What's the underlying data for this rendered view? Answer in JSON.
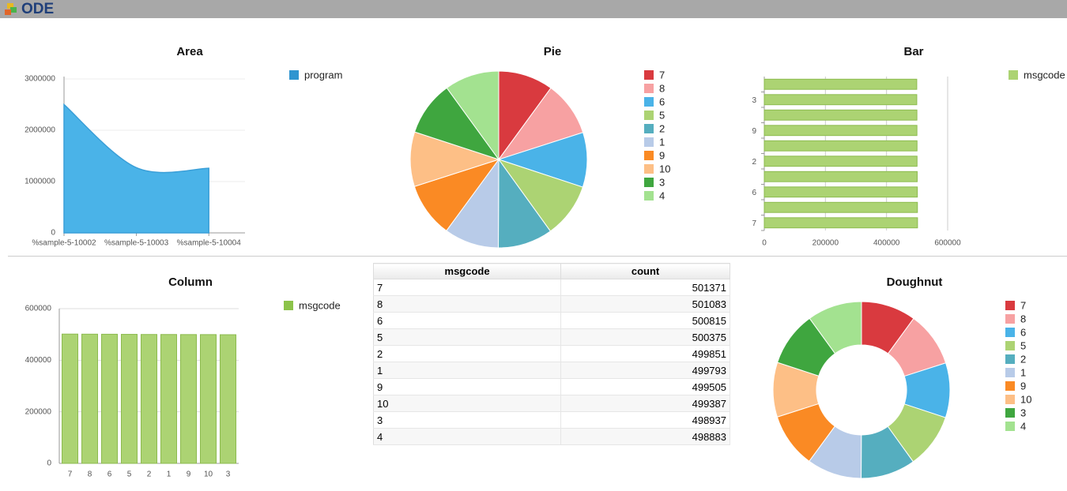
{
  "header": {
    "title": "ODE"
  },
  "chart_data": [
    {
      "type": "area",
      "title": "Area",
      "categories": [
        "%sample-5-10002",
        "%sample-5-10003",
        "%sample-5-10004"
      ],
      "series": [
        {
          "name": "program",
          "color": "#4ab3e8",
          "values": [
            2500000,
            1270000,
            1260000
          ]
        }
      ],
      "ylim": [
        0,
        3000000
      ],
      "yticks": [
        0,
        1000000,
        2000000,
        3000000
      ],
      "grid": true
    },
    {
      "type": "pie",
      "title": "Pie",
      "categories": [
        "7",
        "8",
        "6",
        "5",
        "2",
        "1",
        "9",
        "10",
        "3",
        "4"
      ],
      "values": [
        501371,
        501083,
        500815,
        500375,
        499851,
        499793,
        499505,
        499387,
        498937,
        498883
      ],
      "colors": [
        "#d93a3f",
        "#f7a1a2",
        "#4ab3e8",
        "#acd373",
        "#55aebf",
        "#b8cbe8",
        "#fa8a24",
        "#fdbf86",
        "#3fa63f",
        "#a3e290"
      ]
    },
    {
      "type": "barh",
      "title": "Bar",
      "categories": [
        "7",
        null,
        "6",
        null,
        "2",
        null,
        "9",
        null,
        "3",
        null
      ],
      "series": [
        {
          "name": "msgcode",
          "color": "#acd373",
          "values": [
            501371,
            501083,
            500815,
            500375,
            499851,
            499793,
            499505,
            499387,
            498937,
            498883
          ]
        }
      ],
      "xlim": [
        0,
        600000
      ],
      "xticks": [
        0,
        200000,
        400000,
        600000
      ],
      "grid": true
    },
    {
      "type": "column",
      "title": "Column",
      "categories": [
        "7",
        "8",
        "6",
        "5",
        "2",
        "1",
        "9",
        "10",
        "3",
        null
      ],
      "series": [
        {
          "name": "msgcode",
          "color": "#acd373",
          "values": [
            501371,
            501083,
            500815,
            500375,
            499851,
            499793,
            499505,
            499387,
            498937,
            498883
          ]
        }
      ],
      "ylim": [
        0,
        600000
      ],
      "yticks": [
        0,
        200000,
        400000,
        600000
      ],
      "grid": true
    },
    {
      "type": "doughnut",
      "title": "Doughnut",
      "categories": [
        "7",
        "8",
        "6",
        "5",
        "2",
        "1",
        "9",
        "10",
        "3",
        "4"
      ],
      "values": [
        501371,
        501083,
        500815,
        500375,
        499851,
        499793,
        499505,
        499387,
        498937,
        498883
      ],
      "colors": [
        "#d93a3f",
        "#f7a1a2",
        "#4ab3e8",
        "#acd373",
        "#55aebf",
        "#b8cbe8",
        "#fa8a24",
        "#fdbf86",
        "#3fa63f",
        "#a3e290"
      ]
    }
  ],
  "table": {
    "columns": [
      "msgcode",
      "count"
    ],
    "rows": [
      [
        "7",
        "501371"
      ],
      [
        "8",
        "501083"
      ],
      [
        "6",
        "500815"
      ],
      [
        "5",
        "500375"
      ],
      [
        "2",
        "499851"
      ],
      [
        "1",
        "499793"
      ],
      [
        "9",
        "499505"
      ],
      [
        "10",
        "499387"
      ],
      [
        "3",
        "498937"
      ],
      [
        "4",
        "498883"
      ]
    ]
  }
}
